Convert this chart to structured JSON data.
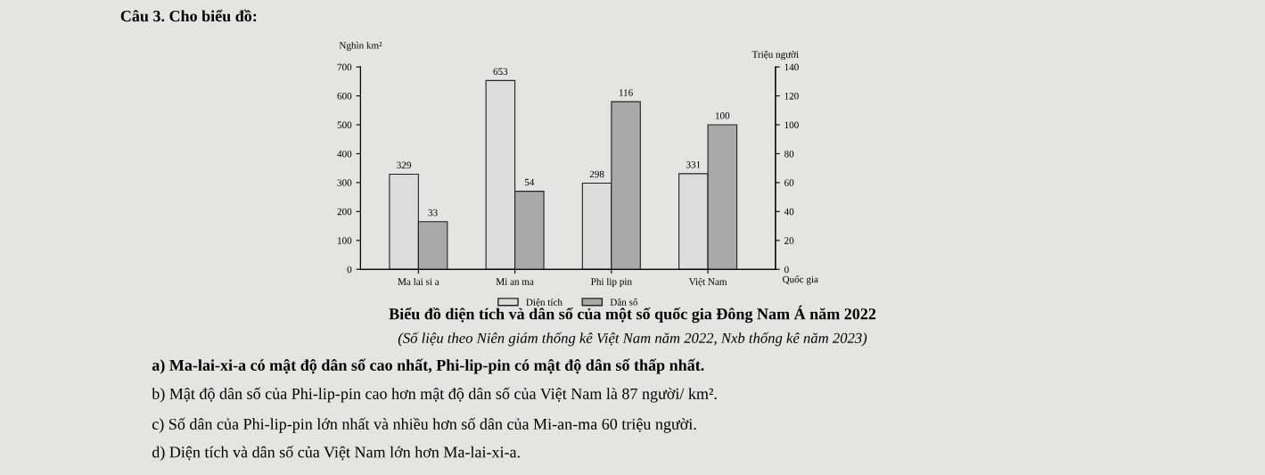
{
  "chart_data": {
    "type": "bar",
    "title": "Biểu đồ diện tích và dân số của một số quốc gia Đông Nam Á năm 2022",
    "subtitle": "(Số liệu theo Niên giám thống kê Việt Nam năm 2022, Nxb thống kê năm 2023)",
    "xlabel": "Quốc gia",
    "ylabel": "Nghìn km²",
    "y2label": "Triệu người",
    "categories": [
      "Ma lai si a",
      "Mi an ma",
      "Phi lip pin",
      "Việt Nam"
    ],
    "series": [
      {
        "name": "Diện tích",
        "color": "#dcdcdc",
        "values": [
          329,
          653,
          298,
          331
        ]
      },
      {
        "name": "Dân số",
        "color": "#a9a9a9",
        "values": [
          33,
          54,
          116,
          100
        ],
        "axis": "y2"
      }
    ],
    "ylim": [
      0,
      700
    ],
    "yticks": [
      0,
      100,
      200,
      300,
      400,
      500,
      600,
      700
    ],
    "y2lim": [
      0,
      140
    ],
    "y2ticks": [
      0,
      20,
      40,
      60,
      80,
      100,
      120,
      140
    ],
    "data_labels": true,
    "legend": "bottom",
    "grid": false,
    "annotations": [
      "Câu 3. Cho biểu đồ:",
      "a) Ma-lai-xi-a có mật độ dân số cao nhất, Phi-lip-pin có mật độ dân số thấp nhất.",
      "b) Mật độ dân số của Phi-lip-pin cao hơn mật độ dân số của Việt Nam là 87 người/ km².",
      "c) Số dân của Phi-lip-pin lớn nhất và nhiều hơn số dân của Mi-an-ma 60 triệu người.",
      "d) Diện tích và dân số của Việt Nam lớn hơn Ma-lai-xi-a."
    ]
  }
}
